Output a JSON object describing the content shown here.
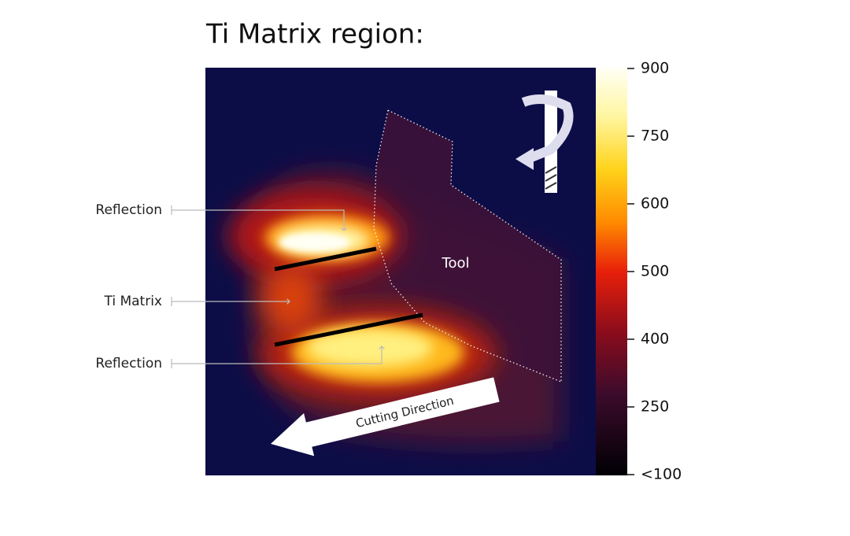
{
  "title": "Ti Matrix region:",
  "colorbar": {
    "ticks": [
      900,
      750,
      600,
      500,
      400,
      250,
      {
        "value": 100,
        "label": "<100"
      }
    ]
  },
  "annotations": {
    "labels": [
      "Reflection",
      "Ti Matrix",
      "Reflection"
    ],
    "tool": "Tool",
    "cutting_direction": "Cutting Direction"
  }
}
